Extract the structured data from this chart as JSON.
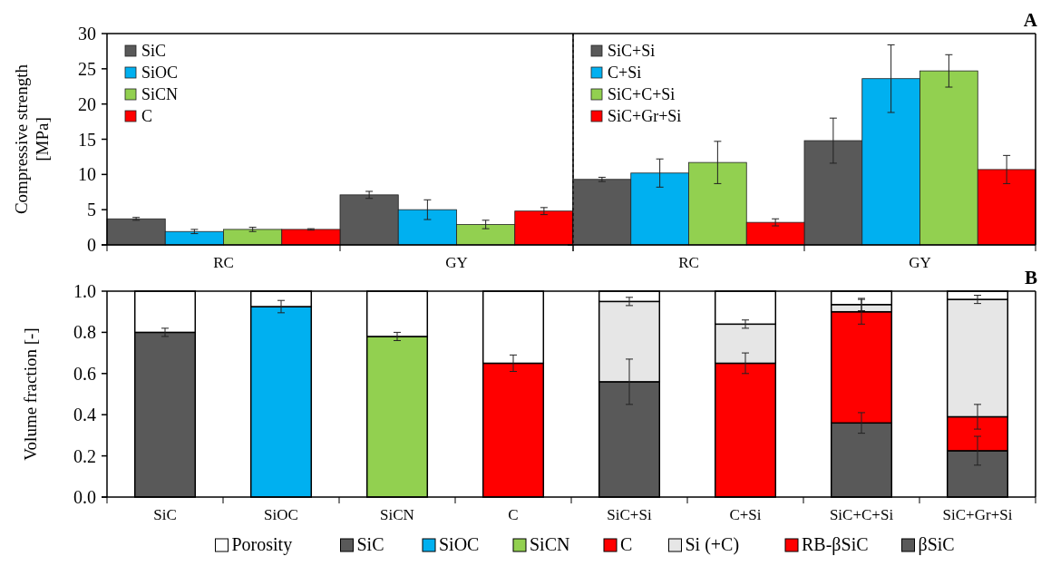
{
  "chart_data": [
    {
      "type": "bar",
      "ylabel": "Compressive strength [MPa]",
      "categories": [
        "RC",
        "GY"
      ],
      "ylim": [
        0,
        30
      ],
      "yticks": [
        0,
        5,
        10,
        15,
        20,
        25,
        30
      ],
      "legend": "top left",
      "series": [
        {
          "name": "SiC",
          "color": "#595959",
          "values": [
            3.7,
            7.1
          ],
          "errors": [
            0.2,
            0.5
          ]
        },
        {
          "name": "SiOC",
          "color": "#00b0f0",
          "values": [
            1.9,
            5.0
          ],
          "errors": [
            0.3,
            1.4
          ]
        },
        {
          "name": "SiCN",
          "color": "#92d050",
          "values": [
            2.2,
            2.9
          ],
          "errors": [
            0.3,
            0.6
          ]
        },
        {
          "name": "C",
          "color": "#ff0000",
          "values": [
            2.2,
            4.8
          ],
          "errors": [
            0.1,
            0.5
          ]
        }
      ]
    },
    {
      "type": "bar",
      "title": "A",
      "categories": [
        "RC",
        "GY"
      ],
      "ylim": [
        0,
        30
      ],
      "tick_labels": "x",
      "legend": "top left",
      "series": [
        {
          "name": "SiC+Si",
          "color": "#595959",
          "values": [
            9.3,
            14.8
          ],
          "errors": [
            0.3,
            3.2
          ]
        },
        {
          "name": "C+Si",
          "color": "#00b0f0",
          "values": [
            10.2,
            23.6
          ],
          "errors": [
            2.0,
            4.8
          ]
        },
        {
          "name": "SiC+C+Si",
          "color": "#92d050",
          "values": [
            11.7,
            24.7
          ],
          "errors": [
            3.0,
            2.3
          ]
        },
        {
          "name": "SiC+Gr+Si",
          "color": "#ff0000",
          "values": [
            3.2,
            10.7
          ],
          "errors": [
            0.5,
            2.0
          ]
        }
      ]
    },
    {
      "type": "bar",
      "title": "B",
      "ylabel": "Volume fraction  [-]",
      "stacked": true,
      "categories": [
        "SiC",
        "SiOC",
        "SiCN",
        "C",
        "SiC+Si",
        "C+Si",
        "SiC+C+Si",
        "SiC+Gr+Si"
      ],
      "ylim": [
        0,
        1
      ],
      "yticks": [
        {
          "value": 0,
          "label": "0.0"
        },
        {
          "value": 0.2,
          "label": "0.2"
        },
        {
          "value": 0.4,
          "label": "0.4"
        },
        {
          "value": 0.6,
          "label": "0.6"
        },
        {
          "value": 0.8,
          "label": "0.8"
        },
        {
          "value": 1,
          "label": "1.0"
        }
      ],
      "legend": "bottom",
      "series": [
        {
          "name": "βSiC",
          "color": "#595959",
          "values": [
            null,
            null,
            null,
            null,
            0.56,
            null,
            0.36,
            0.225
          ],
          "errors": [
            null,
            null,
            null,
            null,
            0.11,
            null,
            0.05,
            0.07
          ]
        },
        {
          "name": "RB-βSiC",
          "color": "#ff0000",
          "values": [
            null,
            null,
            null,
            null,
            null,
            0.65,
            0.54,
            0.165
          ],
          "errors": [
            null,
            null,
            null,
            null,
            null,
            0.05,
            0.06,
            0.06
          ]
        },
        {
          "name": "Si (+C)",
          "color": "#e6e6e6",
          "values": [
            null,
            null,
            null,
            null,
            0.39,
            0.19,
            0.035,
            0.57
          ],
          "errors": [
            null,
            null,
            null,
            null,
            0.02,
            0.02,
            0.03,
            0.02
          ]
        },
        {
          "name": "C",
          "color": "#ff0000",
          "values": [
            null,
            null,
            null,
            0.65,
            null,
            null,
            null,
            null
          ],
          "errors": [
            null,
            null,
            null,
            0.04,
            null,
            null,
            null,
            null
          ]
        },
        {
          "name": "SiCN",
          "color": "#92d050",
          "values": [
            null,
            null,
            0.78,
            null,
            null,
            null,
            null,
            null
          ],
          "errors": [
            null,
            null,
            0.02,
            null,
            null,
            null,
            null,
            null
          ]
        },
        {
          "name": "SiOC",
          "color": "#00b0f0",
          "values": [
            null,
            0.925,
            null,
            null,
            null,
            null,
            null,
            null
          ],
          "errors": [
            null,
            0.03,
            null,
            null,
            null,
            null,
            null,
            null
          ]
        },
        {
          "name": "SiC",
          "color": "#595959",
          "values": [
            0.8,
            null,
            null,
            null,
            null,
            null,
            null,
            null
          ],
          "errors": [
            0.02,
            null,
            null,
            null,
            null,
            null,
            null,
            null
          ]
        },
        {
          "name": "Porosity",
          "color": "#ffffff",
          "values": [
            0.2,
            0.075,
            0.22,
            0.35,
            0.05,
            0.16,
            0.065,
            0.04
          ]
        }
      ]
    }
  ]
}
